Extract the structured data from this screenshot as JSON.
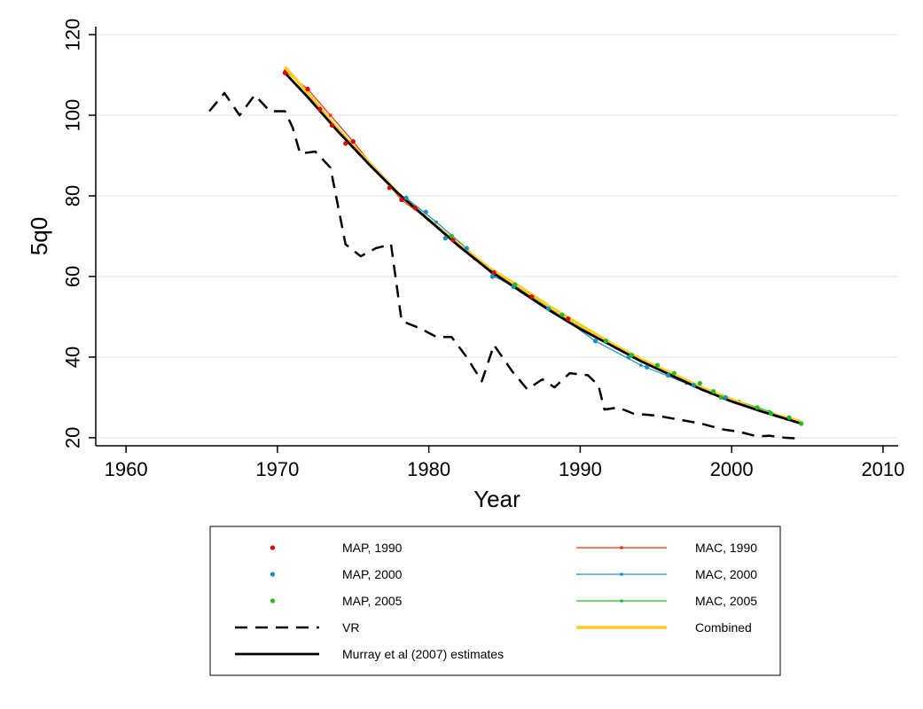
{
  "chart_data": {
    "type": "line",
    "xlabel": "Year",
    "ylabel": "5q0",
    "xlim": [
      1958,
      2011
    ],
    "ylim": [
      18,
      122
    ],
    "xticks": [
      1960,
      1970,
      1980,
      1990,
      2000,
      2010
    ],
    "yticks": [
      20,
      40,
      60,
      80,
      100,
      120
    ],
    "grid": true,
    "legend_position": "bottom",
    "colors": {
      "map_1990": "#e00000",
      "map_2000": "#1a8fbf",
      "map_2005": "#22bb22",
      "mac_1990": "#ff2a00",
      "mac_2000": "#1a8fbf",
      "mac_2005": "#22bb22",
      "vr": "#000000",
      "combined": "#ffcc22",
      "murray": "#000000",
      "grid": "#e4eef0"
    },
    "series": [
      {
        "key": "map_1990",
        "name": "MAP, 1990",
        "style": "points",
        "x": [
          1970.5,
          1972,
          1972.8,
          1973.6,
          1974.5,
          1975,
          1977.4,
          1978.2,
          1979.1,
          1981.6,
          1984.3,
          1986.8,
          1989.2
        ],
        "y": [
          110.5,
          106.5,
          101.5,
          97.5,
          93,
          93.5,
          82,
          79,
          77,
          69,
          61,
          55,
          49.5
        ]
      },
      {
        "key": "map_2000",
        "name": "MAP, 2000",
        "style": "points",
        "x": [
          1978.5,
          1979.8,
          1981.1,
          1982.5,
          1984.2,
          1985.6,
          1987.9,
          1991,
          1993.2,
          1994.4,
          1995.8,
          1997.5,
          1999.6
        ],
        "y": [
          79.5,
          76,
          69.5,
          67,
          60,
          57.5,
          52,
          44,
          40,
          37.5,
          35.5,
          33,
          30
        ]
      },
      {
        "key": "map_2005",
        "name": "MAP, 2005",
        "style": "points",
        "x": [
          1981.5,
          1985.7,
          1988.8,
          1991.7,
          1993.4,
          1995.1,
          1996.2,
          1997.9,
          1998.8,
          1999.3,
          2001.7,
          2002.6,
          2003.8,
          2004.6
        ],
        "y": [
          70,
          58,
          50.5,
          44,
          40.5,
          38,
          36,
          33.5,
          31.5,
          30,
          27.5,
          26,
          25,
          23.5
        ]
      },
      {
        "key": "mac_1990",
        "name": "MAC, 1990",
        "style": "line-markers",
        "x": [
          1970.5,
          1972,
          1973.5,
          1975,
          1976.5,
          1978.2,
          1980,
          1982,
          1984,
          1986.5,
          1989
        ],
        "y": [
          111,
          106.5,
          100,
          93.5,
          86.5,
          79,
          74,
          68,
          62,
          56,
          50
        ]
      },
      {
        "key": "mac_2000",
        "name": "MAC, 2000",
        "style": "line-markers",
        "x": [
          1978.5,
          1980.5,
          1982.5,
          1984.3,
          1986,
          1988,
          1991,
          1994,
          1997,
          1999.6
        ],
        "y": [
          79.5,
          73.5,
          67,
          60,
          57,
          52,
          44,
          38,
          33.5,
          30
        ]
      },
      {
        "key": "mac_2005",
        "name": "MAC, 2005",
        "style": "line-markers",
        "x": [
          1981.2,
          1983,
          1985,
          1987,
          1989,
          1991.3,
          1993.5,
          1996,
          1998.5,
          2000.5,
          2002.5,
          2004.6
        ],
        "y": [
          70,
          64.5,
          59,
          54.5,
          50,
          44.5,
          40,
          36,
          31.5,
          29,
          26.5,
          23.5
        ]
      },
      {
        "key": "vr",
        "name": "VR",
        "style": "dashed",
        "x": [
          1965.5,
          1966.5,
          1967.5,
          1968.5,
          1969.5,
          1970.5,
          1971,
          1971.5,
          1972.5,
          1973.5,
          1974.5,
          1975.5,
          1976.5,
          1977.5,
          1978.2,
          1979.5,
          1980.5,
          1981.5,
          1982.5,
          1983.5,
          1984.3,
          1985.5,
          1986.5,
          1987.5,
          1988.3,
          1989.3,
          1990.5,
          1991.2,
          1991.6,
          1992.5,
          1993.5,
          1995,
          1996.5,
          1998,
          1999.5,
          2000.5,
          2001.7,
          2002.5,
          2003.5,
          2004.5
        ],
        "y": [
          101,
          105.5,
          100,
          105,
          101,
          101,
          97,
          90.5,
          91,
          87,
          68,
          65,
          67,
          68,
          49,
          47,
          45,
          45,
          40,
          34,
          43,
          36.5,
          32,
          34.5,
          32.5,
          36,
          35.5,
          33,
          27,
          27.5,
          26,
          25.5,
          24.5,
          23.5,
          22,
          21.5,
          20.3,
          20.5,
          20,
          19.8
        ]
      },
      {
        "key": "combined",
        "name": "Combined",
        "style": "thick",
        "x": [
          1970.5,
          1972,
          1974,
          1976,
          1978,
          1980,
          1982,
          1984,
          1986,
          1988,
          1990,
          1992,
          1994,
          1996,
          1998,
          2000,
          2002,
          2004.6
        ],
        "y": [
          112,
          105.5,
          96.5,
          88.5,
          80.5,
          74,
          68,
          62,
          57.5,
          52.5,
          48,
          43.5,
          39.5,
          36,
          32.5,
          29.5,
          26.5,
          24
        ]
      },
      {
        "key": "murray",
        "name": "Murray et al (2007) estimates",
        "style": "solid-thick",
        "x": [
          1970.5,
          1972,
          1974,
          1976,
          1978,
          1980,
          1982,
          1984,
          1986,
          1988,
          1990,
          1992,
          1994,
          1996,
          1998,
          2000,
          2002,
          2004.6
        ],
        "y": [
          110.5,
          104.5,
          96,
          88,
          80.5,
          74,
          67.5,
          61.5,
          56.5,
          51.5,
          47,
          43,
          39,
          35.5,
          32,
          29,
          26.5,
          23.5
        ]
      }
    ],
    "legend_rows": [
      [
        "map_1990",
        "mac_1990"
      ],
      [
        "map_2000",
        "mac_2000"
      ],
      [
        "map_2005",
        "mac_2005"
      ],
      [
        "vr",
        "combined"
      ],
      [
        "murray",
        null
      ]
    ]
  }
}
